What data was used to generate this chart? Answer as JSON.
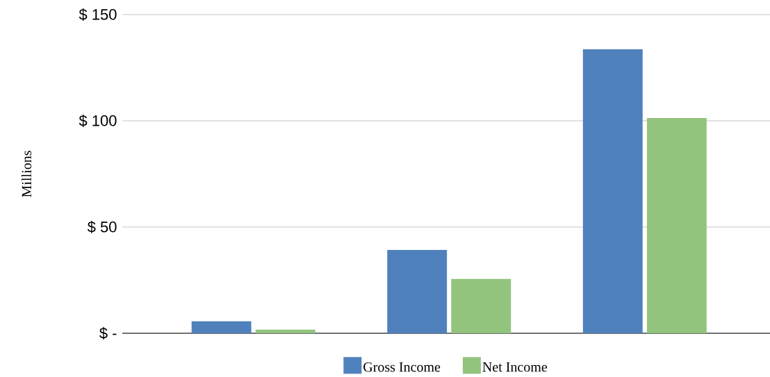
{
  "chart_data": {
    "type": "bar",
    "ylabel": "Millions",
    "categories": [
      null,
      null,
      null
    ],
    "series": [
      {
        "name": "Gross Income",
        "color": "#4f81bd",
        "values": [
          5.6,
          39.2,
          133.7
        ]
      },
      {
        "name": "Net Income",
        "color": "#92c47d",
        "values": [
          1.7,
          25.6,
          101.3
        ]
      }
    ],
    "ylim": [
      0,
      150
    ],
    "yticks": [
      {
        "value": 0,
        "label": "$ -"
      },
      {
        "value": 50,
        "label": "$ 50"
      },
      {
        "value": 100,
        "label": "$ 100"
      },
      {
        "value": 150,
        "label": "$ 150"
      }
    ],
    "grid": "y",
    "legend": "bottom"
  }
}
